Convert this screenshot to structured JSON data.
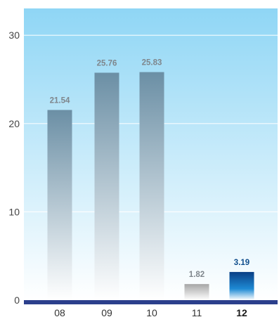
{
  "colors": {
    "background_top": "#8fd6f5",
    "background_bottom": "#ffffff",
    "bar_gray_top": "#6b8fa5",
    "bar_gray_bottom": "#ffffff",
    "bar_light_top": "#a6a6a6",
    "bar_highlight_top": "#0a3f85",
    "bar_highlight_mid": "#1e8ad4",
    "baseline": "#2b3f8c"
  },
  "chart_data": {
    "type": "bar",
    "categories": [
      "08",
      "09",
      "10",
      "11",
      "12"
    ],
    "values": [
      21.54,
      25.76,
      25.83,
      1.82,
      3.19
    ],
    "value_labels": [
      "21.54",
      "25.76",
      "25.83",
      "1.82",
      "3.19"
    ],
    "highlight_index": 4,
    "yticks": [
      "0",
      "10",
      "20",
      "30"
    ],
    "ylim": [
      0,
      33.5
    ],
    "grid": true,
    "title": "",
    "xlabel": "",
    "ylabel": ""
  }
}
